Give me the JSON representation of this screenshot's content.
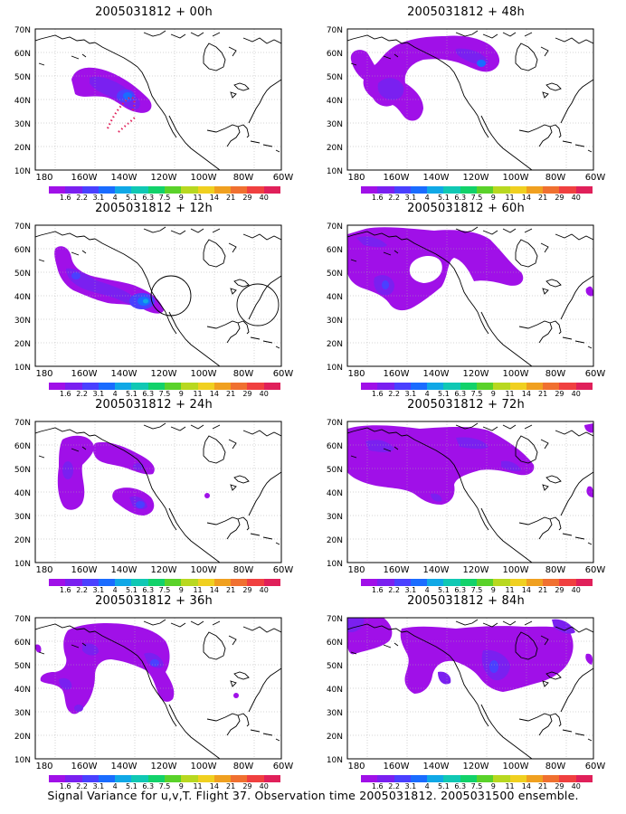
{
  "colorbar": {
    "colors": [
      "#a010e8",
      "#7a20f0",
      "#4a40ff",
      "#1a6cff",
      "#10a8e6",
      "#10c8b4",
      "#12d26a",
      "#5ad22a",
      "#b8d820",
      "#f0d020",
      "#f0a020",
      "#f07030",
      "#f04040",
      "#e0205a"
    ],
    "labels": [
      "1.6",
      "2.2",
      "3.1",
      "4",
      "5.1",
      "6.3",
      "7.5",
      "9",
      "11",
      "14",
      "21",
      "29",
      "40"
    ]
  },
  "axes": {
    "lat_labels": [
      "70N",
      "60N",
      "50N",
      "40N",
      "30N",
      "20N",
      "10N"
    ],
    "lon_labels": [
      "180",
      "160W",
      "140W",
      "120W",
      "100W",
      "80W",
      "60W"
    ]
  },
  "panels": [
    {
      "title": "2005031812 + 00h"
    },
    {
      "title": "2005031812 + 48h"
    },
    {
      "title": "2005031812 + 12h"
    },
    {
      "title": "2005031812 + 60h"
    },
    {
      "title": "2005031812 + 24h"
    },
    {
      "title": "2005031812 + 72h"
    },
    {
      "title": "2005031812 + 36h"
    },
    {
      "title": "2005031812 + 84h"
    }
  ],
  "caption": "Signal Variance for u,v,T. Flight 37. Observation time 2005031812. 2005031500 ensemble."
}
